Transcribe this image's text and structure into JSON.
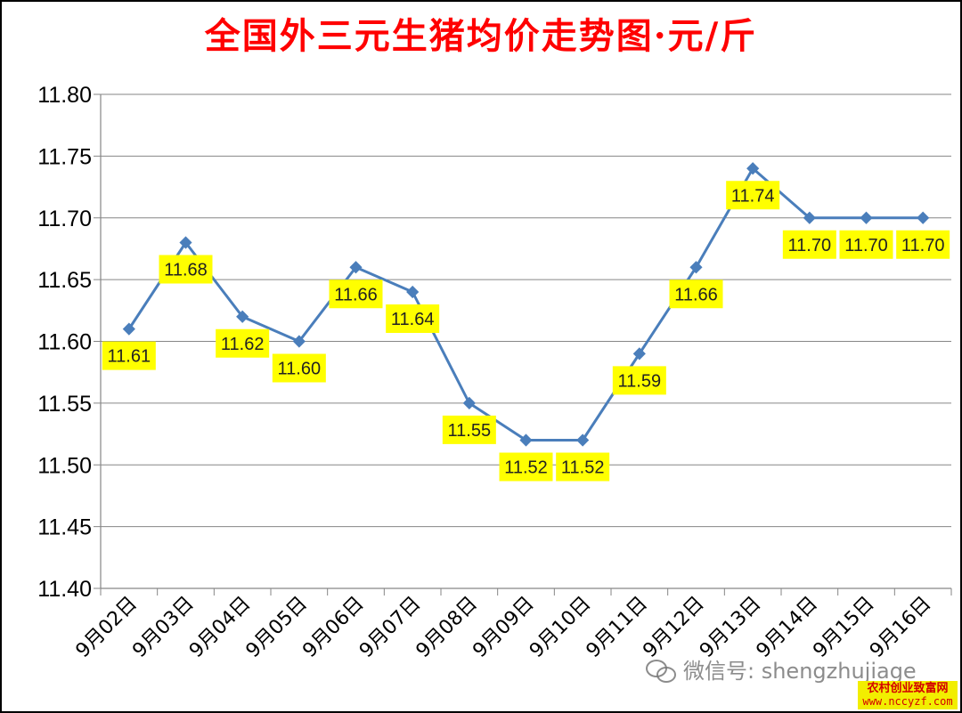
{
  "chart_data": {
    "type": "line",
    "title": "全国外三元生猪均价走势图·元/斤",
    "categories": [
      "9月02日",
      "9月03日",
      "9月04日",
      "9月05日",
      "9月06日",
      "9月07日",
      "9月08日",
      "9月09日",
      "9月10日",
      "9月11日",
      "9月12日",
      "9月13日",
      "9月14日",
      "9月15日",
      "9月16日"
    ],
    "series": [
      {
        "values": [
          11.61,
          11.68,
          11.62,
          11.6,
          11.66,
          11.64,
          11.55,
          11.52,
          11.52,
          11.59,
          11.66,
          11.74,
          11.7,
          11.7,
          11.7
        ]
      }
    ],
    "ylim": [
      11.4,
      11.8
    ],
    "yticks": [
      "11.80",
      "11.75",
      "11.70",
      "11.65",
      "11.60",
      "11.55",
      "11.50",
      "11.45",
      "11.40"
    ],
    "grid": true,
    "legend": "none",
    "colors": {
      "title": "#ff0000",
      "line": "#4a7ebb",
      "label_bg": "#ffff00",
      "grid": "#868686"
    }
  },
  "watermark": {
    "text": "微信号: shengzhujiage",
    "icon": "wechat-icon"
  },
  "site_badge": {
    "name": "农村创业致富网",
    "url": "www.nccyzf.com"
  }
}
